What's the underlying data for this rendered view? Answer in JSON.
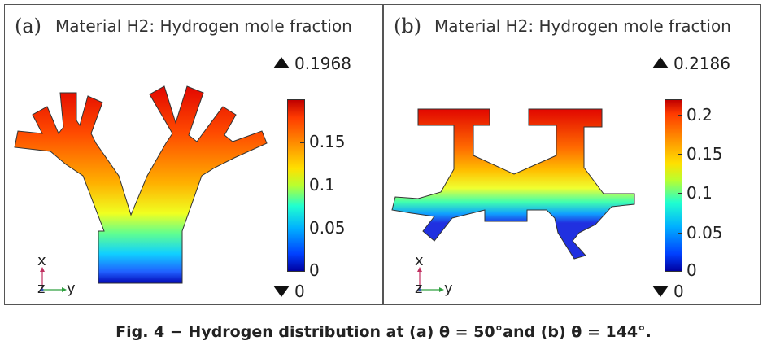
{
  "panels": [
    {
      "label": "(a)",
      "title": "Material H2: Hydrogen mole fraction",
      "max_label": "0.1968",
      "min_label": "0",
      "colorbar_ticks": [
        "0.15",
        "0.1",
        "0.05",
        "0"
      ],
      "axes": {
        "x": "x",
        "y": "y",
        "z": "z"
      }
    },
    {
      "label": "(b)",
      "title": "Material H2: Hydrogen mole fraction",
      "max_label": "0.2186",
      "min_label": "0",
      "colorbar_ticks": [
        "0.2",
        "0.15",
        "0.1",
        "0.05",
        "0"
      ],
      "axes": {
        "x": "x",
        "y": "y",
        "z": "z"
      }
    }
  ],
  "caption": "Fig. 4 − Hydrogen distribution at (a) θ = 50°and (b) θ = 144°."
}
